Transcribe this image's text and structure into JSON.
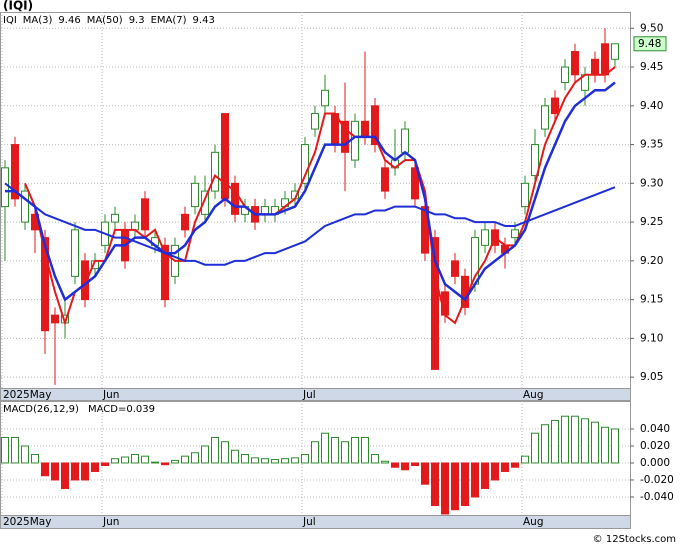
{
  "chart_data": [
    {
      "type": "candlestick",
      "title": "(IQI)",
      "ticker": "IQI",
      "ticker_color": "#2e8b2e",
      "categories": [
        "2025May",
        null,
        null,
        null,
        null,
        null,
        null,
        null,
        null,
        null,
        "Jun",
        null,
        null,
        null,
        null,
        null,
        null,
        null,
        null,
        null,
        null,
        null,
        null,
        null,
        null,
        null,
        null,
        null,
        null,
        null,
        "Jul",
        null,
        null,
        null,
        null,
        null,
        null,
        null,
        null,
        null,
        null,
        null,
        null,
        null,
        null,
        null,
        null,
        null,
        null,
        null,
        null,
        null,
        "Aug",
        null,
        null,
        null,
        null,
        null,
        null,
        null,
        null,
        null
      ],
      "open": [
        9.27,
        9.35,
        9.25,
        9.26,
        9.23,
        9.13,
        9.12,
        9.18,
        9.2,
        9.19,
        9.22,
        9.25,
        9.24,
        9.24,
        9.28,
        9.22,
        9.22,
        9.18,
        9.26,
        9.27,
        9.26,
        9.29,
        9.39,
        9.3,
        9.26,
        9.27,
        9.26,
        9.26,
        9.27,
        9.28,
        9.3,
        9.37,
        9.4,
        9.39,
        9.38,
        9.33,
        9.38,
        9.4,
        9.32,
        9.32,
        9.34,
        9.32,
        9.27,
        9.23,
        9.16,
        9.2,
        9.18,
        9.17,
        9.22,
        9.24,
        9.22,
        9.23,
        9.27,
        9.31,
        9.37,
        9.41,
        9.43,
        9.47,
        9.42,
        9.46,
        9.48,
        9.46
      ],
      "high": [
        9.33,
        9.36,
        9.3,
        9.27,
        9.24,
        9.14,
        9.15,
        9.25,
        9.21,
        9.21,
        9.26,
        9.27,
        9.25,
        9.26,
        9.29,
        9.24,
        9.23,
        9.23,
        9.27,
        9.31,
        9.31,
        9.35,
        9.39,
        9.31,
        9.28,
        9.28,
        9.28,
        9.28,
        9.29,
        9.3,
        9.36,
        9.4,
        9.44,
        9.4,
        9.43,
        9.39,
        9.47,
        9.41,
        9.33,
        9.37,
        9.38,
        9.33,
        9.28,
        9.24,
        9.17,
        9.21,
        9.19,
        9.24,
        9.25,
        9.25,
        9.23,
        9.25,
        9.31,
        9.37,
        9.41,
        9.42,
        9.46,
        9.48,
        9.45,
        9.47,
        9.5,
        9.48
      ],
      "low": [
        9.2,
        9.27,
        9.24,
        9.21,
        9.08,
        9.04,
        9.1,
        9.17,
        9.14,
        9.18,
        9.21,
        9.24,
        9.19,
        9.23,
        9.23,
        9.21,
        9.14,
        9.17,
        9.23,
        9.26,
        9.25,
        9.28,
        9.27,
        9.25,
        9.25,
        9.24,
        9.25,
        9.25,
        9.26,
        9.27,
        9.29,
        9.36,
        9.39,
        9.34,
        9.29,
        9.32,
        9.35,
        9.34,
        9.28,
        9.31,
        9.33,
        9.27,
        9.2,
        9.06,
        9.12,
        9.17,
        9.13,
        9.16,
        9.21,
        9.21,
        9.19,
        9.22,
        9.26,
        9.3,
        9.36,
        9.38,
        9.42,
        9.43,
        9.4,
        9.43,
        9.43,
        9.45
      ],
      "close": [
        9.32,
        9.28,
        9.29,
        9.24,
        9.11,
        9.12,
        9.13,
        9.24,
        9.15,
        9.2,
        9.25,
        9.26,
        9.2,
        9.25,
        9.24,
        9.23,
        9.15,
        9.22,
        9.24,
        9.3,
        9.29,
        9.34,
        9.28,
        9.26,
        9.27,
        9.25,
        9.27,
        9.27,
        9.28,
        9.29,
        9.35,
        9.39,
        9.42,
        9.35,
        9.34,
        9.38,
        9.36,
        9.35,
        9.29,
        9.33,
        9.37,
        9.28,
        9.21,
        9.06,
        9.13,
        9.18,
        9.14,
        9.23,
        9.24,
        9.22,
        9.21,
        9.24,
        9.3,
        9.35,
        9.4,
        9.39,
        9.45,
        9.44,
        9.44,
        9.44,
        9.44,
        9.48
      ],
      "up_color": "#2e8b2e",
      "down_color": "#e31a1c",
      "series": [
        {
          "name": "MA(3)",
          "last": 9.46,
          "color": "#e31a1c",
          "width": 2,
          "values": [
            null,
            null,
            9.3,
            9.27,
            9.21,
            9.16,
            9.12,
            9.16,
            9.17,
            9.2,
            9.2,
            9.24,
            9.24,
            9.24,
            9.23,
            9.24,
            9.21,
            9.2,
            9.2,
            9.25,
            9.28,
            9.31,
            9.3,
            9.29,
            9.27,
            9.26,
            9.26,
            9.26,
            9.27,
            9.28,
            9.31,
            9.34,
            9.39,
            9.39,
            9.37,
            9.36,
            9.36,
            9.36,
            9.33,
            9.32,
            9.33,
            9.33,
            9.29,
            9.18,
            9.13,
            9.12,
            9.15,
            9.18,
            9.2,
            9.23,
            9.22,
            9.22,
            9.25,
            9.3,
            9.35,
            9.38,
            9.41,
            9.43,
            9.44,
            9.44,
            9.44,
            9.45
          ]
        },
        {
          "name": "MA(50)",
          "last": 9.3,
          "color": "#1f2ed6",
          "width": 2,
          "values": [
            9.3,
            9.29,
            9.28,
            9.27,
            9.26,
            9.255,
            9.25,
            9.245,
            9.24,
            9.24,
            9.235,
            9.23,
            9.23,
            9.225,
            9.22,
            9.215,
            9.21,
            9.205,
            9.2,
            9.2,
            9.195,
            9.195,
            9.195,
            9.2,
            9.2,
            9.205,
            9.21,
            9.21,
            9.215,
            9.22,
            9.225,
            9.235,
            9.245,
            9.25,
            9.255,
            9.26,
            9.26,
            9.265,
            9.265,
            9.27,
            9.27,
            9.27,
            9.265,
            9.26,
            9.26,
            9.255,
            9.255,
            9.25,
            9.25,
            9.25,
            9.245,
            9.245,
            9.25,
            9.255,
            9.26,
            9.265,
            9.27,
            9.275,
            9.28,
            9.285,
            9.29,
            9.295
          ]
        },
        {
          "name": "EMA(7)",
          "last": 9.43,
          "color": "#1f2ed6",
          "width": 2.5,
          "values": [
            9.29,
            9.29,
            9.28,
            9.27,
            9.22,
            9.18,
            9.15,
            9.16,
            9.17,
            9.18,
            9.2,
            9.22,
            9.22,
            9.23,
            9.23,
            9.22,
            9.21,
            9.21,
            9.22,
            9.24,
            9.25,
            9.27,
            9.28,
            9.27,
            9.27,
            9.26,
            9.26,
            9.26,
            9.265,
            9.27,
            9.29,
            9.32,
            9.35,
            9.35,
            9.35,
            9.36,
            9.36,
            9.36,
            9.34,
            9.33,
            9.34,
            9.33,
            9.28,
            9.2,
            9.17,
            9.16,
            9.15,
            9.17,
            9.19,
            9.2,
            9.21,
            9.22,
            9.24,
            9.28,
            9.32,
            9.35,
            9.38,
            9.4,
            9.41,
            9.42,
            9.42,
            9.43
          ]
        }
      ],
      "ylim": [
        9.036,
        9.521
      ],
      "yticks": [
        {
          "value": 9.5,
          "label": "9.50"
        },
        9.45,
        {
          "value": 9.4,
          "label": "9.40"
        },
        9.35,
        {
          "value": 9.3,
          "label": "9.30"
        },
        9.25,
        {
          "value": 9.2,
          "label": "9.20"
        },
        9.15,
        {
          "value": 9.1,
          "label": "9.10"
        },
        9.05
      ],
      "grid": true
    },
    {
      "type": "bar",
      "title": "MACD(26,12,9)",
      "subtitle": "MACD=0.039",
      "subtitle_color": "#1f2ed6",
      "pos_color": "#2e8b2e",
      "neg_color": "#e31a1c",
      "values": [
        0.03,
        0.03,
        0.02,
        0.01,
        -0.015,
        -0.02,
        -0.03,
        -0.02,
        -0.02,
        -0.01,
        -0.003,
        0.005,
        0.007,
        0.01,
        0.008,
        0.001,
        -0.002,
        0.003,
        0.008,
        0.012,
        0.02,
        0.03,
        0.025,
        0.015,
        0.01,
        0.006,
        0.005,
        0.004,
        0.005,
        0.006,
        0.01,
        0.025,
        0.035,
        0.03,
        0.025,
        0.03,
        0.03,
        0.01,
        0.002,
        -0.005,
        -0.008,
        -0.003,
        -0.025,
        -0.05,
        -0.06,
        -0.055,
        -0.05,
        -0.04,
        -0.03,
        -0.02,
        -0.01,
        -0.005,
        0.008,
        0.035,
        0.045,
        0.05,
        0.055,
        0.055,
        0.052,
        0.048,
        0.042,
        0.04
      ],
      "ylim": [
        -0.0612,
        0.0729
      ],
      "yticks": [
        {
          "value": 0.04,
          "label": "0.040"
        },
        {
          "value": 0.02,
          "label": "0.020"
        },
        {
          "value": 0,
          "label": "0.000"
        },
        {
          "value": -0.02,
          "label": "-0.020"
        },
        {
          "value": -0.04,
          "label": "-0.040"
        }
      ],
      "grid": true
    }
  ],
  "footer": "© 12Stocks.com"
}
